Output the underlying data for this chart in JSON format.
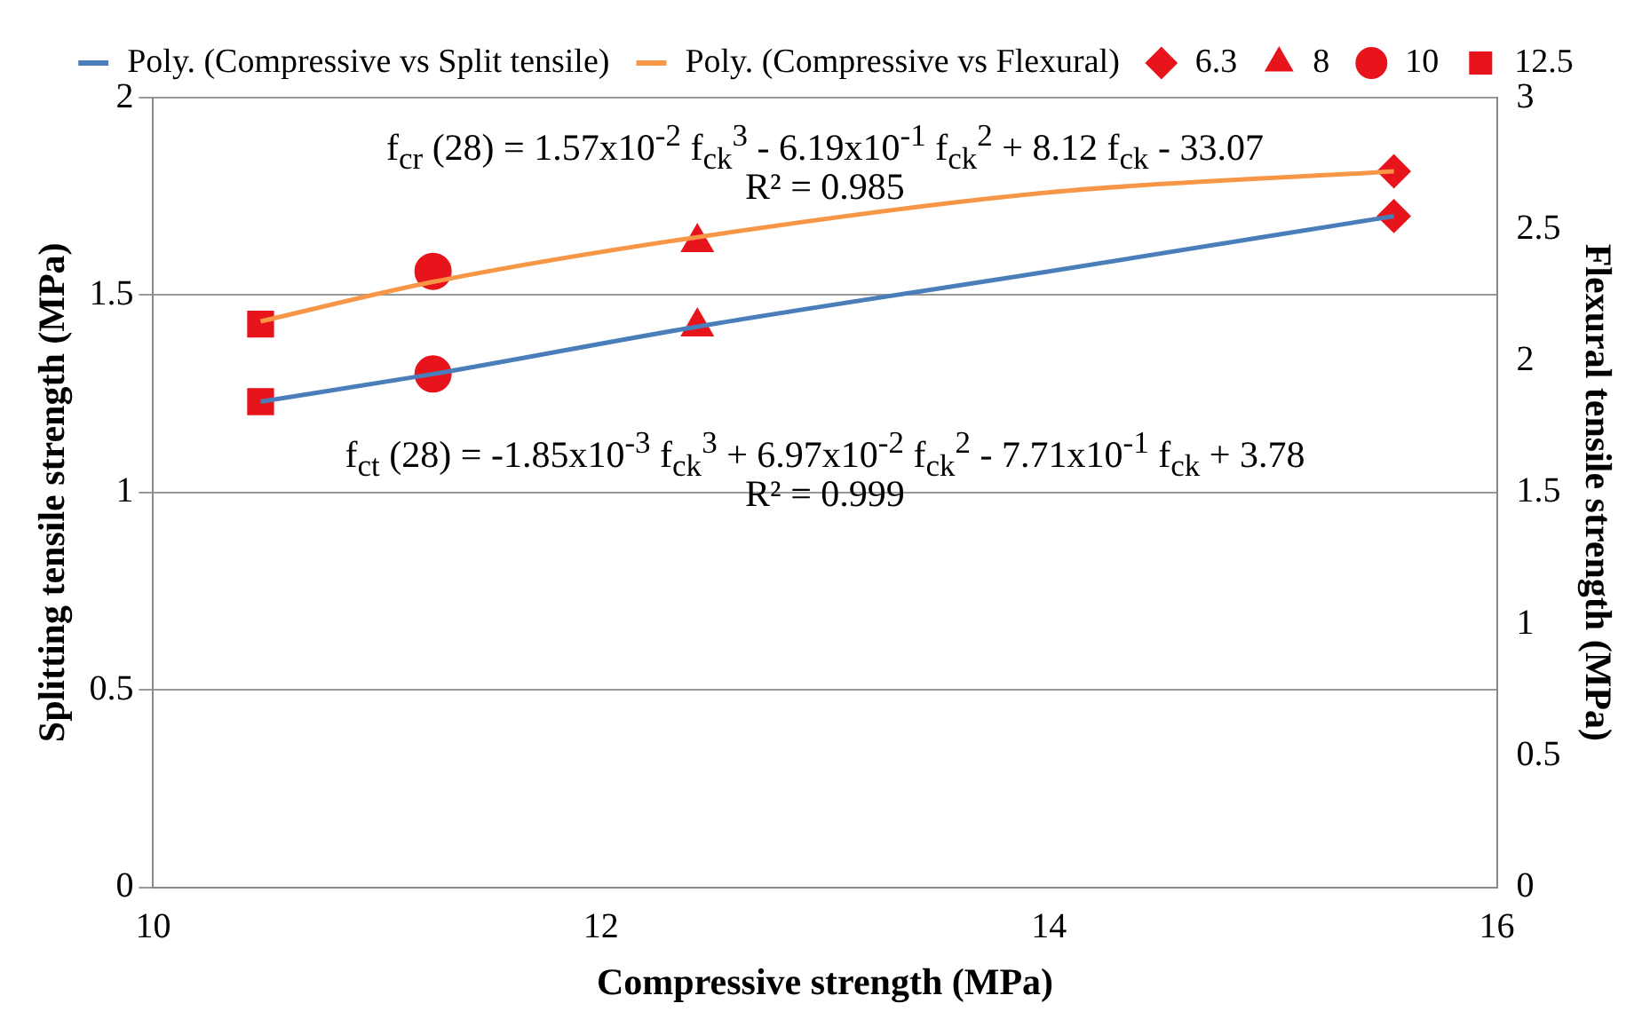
{
  "chart_data": {
    "type": "scatter",
    "xlabel": "Compressive strength (MPa)",
    "ylabel": "Splitting tensile strength (MPa)",
    "y2label": "Flexural tensile strength (MPa)",
    "xlim": [
      10,
      16
    ],
    "xticks": [
      10,
      12,
      14,
      16
    ],
    "ylim": [
      0,
      2
    ],
    "yticks": [
      0,
      0.5,
      1,
      1.5,
      2
    ],
    "y2lim": [
      0,
      3
    ],
    "y2ticks": [
      0,
      0.5,
      1,
      1.5,
      2,
      2.5,
      3
    ],
    "grid": "y",
    "legend": "top",
    "series": [
      {
        "name": "Poly. (Compressive vs Split tensile)",
        "type": "line",
        "color": "#4a7ebb",
        "marker": "none",
        "x": [
          10.48,
          11.25,
          12.43,
          14,
          15.54
        ],
        "values": [
          1.23,
          1.3,
          1.42,
          1.56,
          1.7
        ]
      },
      {
        "name": "Poly. (Compressive vs Flexural)",
        "type": "line",
        "axis": "y2",
        "color": "#f79646",
        "marker": "none",
        "x": [
          10.48,
          11.25,
          12.43,
          14,
          15.54
        ],
        "values": [
          2.15,
          2.3,
          2.47,
          2.64,
          2.72
        ]
      },
      {
        "name": "6.3",
        "color": "#e8141b",
        "marker": "diamond",
        "x": [
          15.54
        ],
        "values": [
          1.7
        ]
      },
      {
        "name": "8",
        "color": "#e8141b",
        "marker": "triangle",
        "x": [
          12.43
        ],
        "values": [
          1.42
        ]
      },
      {
        "name": "10",
        "color": "#e8141b",
        "marker": "circle",
        "x": [
          11.25
        ],
        "values": [
          1.3
        ]
      },
      {
        "name": "12.5",
        "color": "#e8141b",
        "marker": "square",
        "x": [
          10.48
        ],
        "values": [
          1.23
        ]
      },
      {
        "color": "#e8141b",
        "marker": "diamond",
        "axis": "y2",
        "x": [
          15.54
        ],
        "values": [
          2.72
        ]
      },
      {
        "color": "#e8141b",
        "marker": "triangle",
        "axis": "y2",
        "x": [
          12.43
        ],
        "values": [
          2.45
        ]
      },
      {
        "color": "#e8141b",
        "marker": "circle",
        "axis": "y2",
        "x": [
          11.25
        ],
        "values": [
          2.34
        ]
      },
      {
        "color": "#e8141b",
        "marker": "square",
        "axis": "y2",
        "x": [
          10.48
        ],
        "values": [
          2.14
        ]
      }
    ],
    "annotations": [
      "f$_{cr}$ (28) = 1.57x10$^{-2}$ f$_{ck}$$^{3}$ - 6.19x10$^{-1}$ f$_{ck}$$^{2}$ + 8.12 f$_{ck}$ - 33.07",
      "R² = 0.985",
      "f$_{ct}$ (28) = -1.85x10$^{-3}$ f$_{ck}$$^{3}$ + 6.97x10$^{-2}$ f$_{ck}$$^{2}$ - 7.71x10$^{-1}$ f$_{ck}$ + 3.78",
      "R² = 0.999"
    ]
  }
}
